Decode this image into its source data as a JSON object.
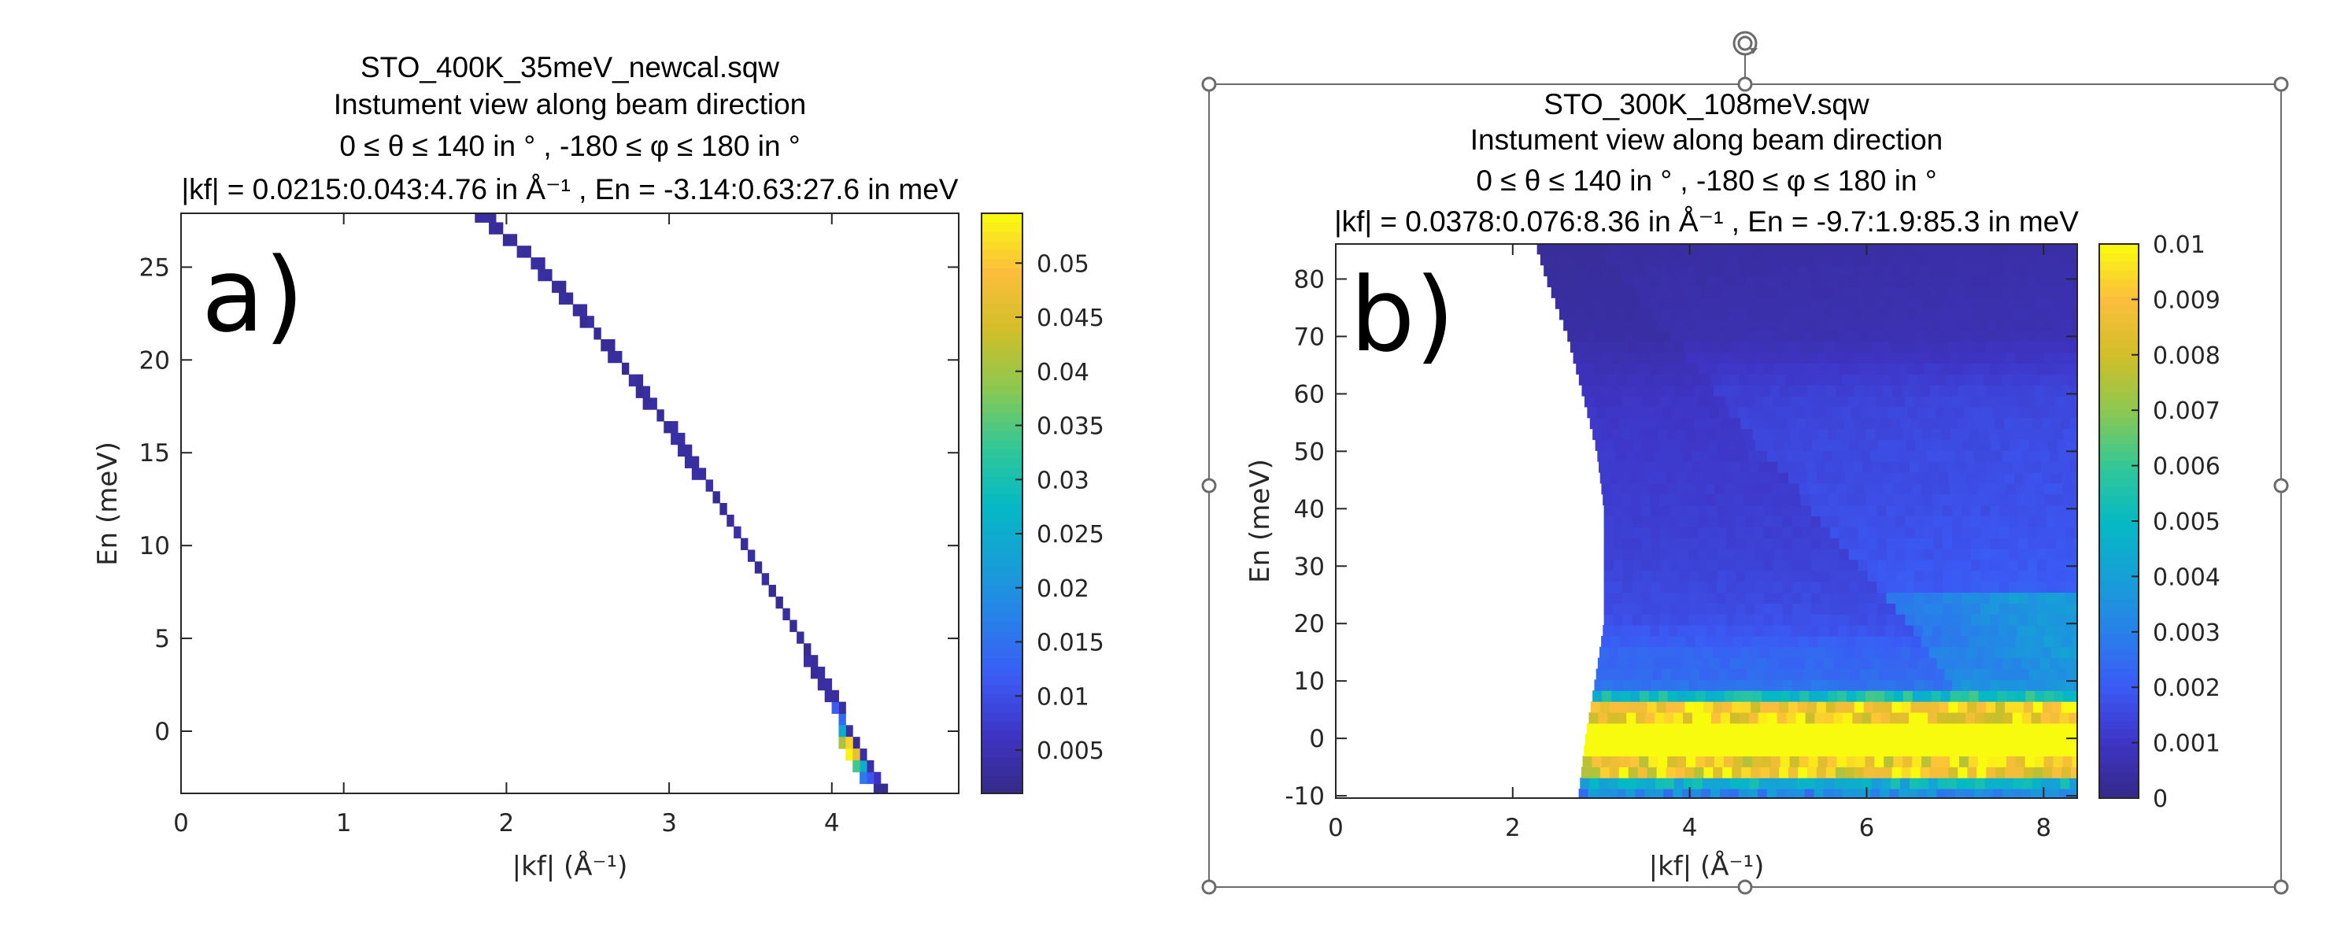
{
  "figure": {
    "selection": {
      "selected_panel": "b",
      "handles": [
        "top-left",
        "top-center",
        "top-right",
        "middle-left",
        "middle-right",
        "bottom-left",
        "bottom-center",
        "bottom-right"
      ],
      "rotate_handle_icon": "rotate-icon"
    }
  },
  "chart_data": [
    {
      "id": "a",
      "type": "heatmap",
      "panel_label": "a)",
      "title": [
        "STO_400K_35meV_newcal.sqw",
        "Instument view along beam direction",
        "0 ≤ θ ≤ 140 in ° , -180 ≤ φ ≤ 180 in °",
        "|kf| = 0.0215:0.043:4.76 in Å⁻¹ , En = -3.14:0.63:27.6 in meV"
      ],
      "xlabel": "|kf| (Å⁻¹)",
      "ylabel": "En (meV)",
      "xlim": [
        0,
        4.78
      ],
      "ylim": [
        -3.35,
        27.9
      ],
      "xticks": [
        0,
        1,
        2,
        3,
        4
      ],
      "xtick_labels": [
        "0",
        "1",
        "2",
        "3",
        "4"
      ],
      "yticks": [
        0,
        5,
        10,
        15,
        20,
        25
      ],
      "ytick_labels": [
        "0",
        "5",
        "10",
        "15",
        "20",
        "25"
      ],
      "grid": false,
      "colormap": "parula",
      "clim": [
        0.001,
        0.0546
      ],
      "colorbar": {
        "ticks": [
          0.005,
          0.01,
          0.015,
          0.02,
          0.025,
          0.03,
          0.035,
          0.04,
          0.045,
          0.05
        ],
        "tick_labels": [
          "0.005",
          "0.01",
          "0.015",
          "0.02",
          "0.025",
          "0.03",
          "0.035",
          "0.04",
          "0.045",
          "0.05"
        ]
      },
      "bins": {
        "kf_start": 0.0215,
        "kf_step": 0.043,
        "kf_end": 4.76,
        "en_start": -3.14,
        "en_step": 0.63,
        "en_end": 27.6
      },
      "description": "Single kinematic line En = Ei - 2.0723*|kf|^2 with Ei = 35 meV; intensity ~0.002-0.004 everywhere except elastic region",
      "ei_meV": 35,
      "baseline_intensity": 0.003,
      "highlight_cells": [
        {
          "kf": 4.02,
          "en": 1.27,
          "value": 0.012
        },
        {
          "kf": 4.06,
          "en": 0.64,
          "value": 0.014
        },
        {
          "kf": 4.06,
          "en": 0.01,
          "value": 0.024
        },
        {
          "kf": 4.06,
          "en": -0.62,
          "value": 0.041
        },
        {
          "kf": 4.11,
          "en": -0.62,
          "value": 0.051
        },
        {
          "kf": 4.11,
          "en": -1.25,
          "value": 0.054
        },
        {
          "kf": 4.15,
          "en": -1.25,
          "value": 0.047
        },
        {
          "kf": 4.15,
          "en": -1.88,
          "value": 0.034
        },
        {
          "kf": 4.19,
          "en": -1.88,
          "value": 0.025
        },
        {
          "kf": 4.19,
          "en": -2.51,
          "value": 0.016
        },
        {
          "kf": 4.24,
          "en": -2.51,
          "value": 0.011
        },
        {
          "kf": 4.28,
          "en": -2.51,
          "value": 0.006
        }
      ]
    },
    {
      "id": "b",
      "type": "heatmap",
      "panel_label": "b)",
      "title": [
        "STO_300K_108meV.sqw",
        "Instument view along beam direction",
        "0 ≤ θ ≤ 140 in ° , -180 ≤ φ ≤ 180 in °",
        "|kf| = 0.0378:0.076:8.36 in Å⁻¹ , En = -9.7:1.9:85.3 in meV"
      ],
      "xlabel": "|kf| (Å⁻¹)",
      "ylabel": "En (meV)",
      "xlim": [
        0,
        8.38
      ],
      "ylim": [
        -10.4,
        86.1
      ],
      "xticks": [
        0,
        2,
        4,
        6,
        8
      ],
      "xtick_labels": [
        "0",
        "2",
        "4",
        "6",
        "8"
      ],
      "yticks": [
        -10,
        0,
        10,
        20,
        30,
        40,
        50,
        60,
        70,
        80
      ],
      "ytick_labels": [
        "-10",
        "0",
        "10",
        "20",
        "30",
        "40",
        "50",
        "60",
        "70",
        "80"
      ],
      "grid": false,
      "colormap": "parula",
      "clim": [
        0,
        0.01
      ],
      "colorbar": {
        "ticks": [
          0,
          0.001,
          0.002,
          0.003,
          0.004,
          0.005,
          0.006,
          0.007,
          0.008,
          0.009,
          0.01
        ],
        "tick_labels": [
          "0",
          "0.001",
          "0.002",
          "0.003",
          "0.004",
          "0.005",
          "0.006",
          "0.007",
          "0.008",
          "0.009",
          "0.01"
        ]
      },
      "bins": {
        "kf_start": 0.0378,
        "kf_step": 0.076,
        "kf_end": 8.36,
        "en_start": -9.7,
        "en_step": 1.9,
        "en_end": 85.3
      },
      "ei_meV": 108,
      "coverage_left_edge": [
        {
          "en": 86,
          "kf": 2.26
        },
        {
          "en": 80,
          "kf": 2.38
        },
        {
          "en": 70,
          "kf": 2.62
        },
        {
          "en": 60,
          "kf": 2.79
        },
        {
          "en": 50,
          "kf": 2.95
        },
        {
          "en": 40,
          "kf": 3.03
        },
        {
          "en": 20,
          "kf": 3.03
        },
        {
          "en": 10,
          "kf": 2.93
        },
        {
          "en": 0,
          "kf": 2.82
        },
        {
          "en": -10.4,
          "kf": 2.74
        }
      ],
      "intensity_profile": [
        {
          "en": 85,
          "value": 0.0004
        },
        {
          "en": 70,
          "value": 0.0006
        },
        {
          "en": 60,
          "value": 0.0012
        },
        {
          "en": 50,
          "value": 0.0014
        },
        {
          "en": 40,
          "value": 0.0015
        },
        {
          "en": 30,
          "value": 0.0017
        },
        {
          "en": 20,
          "value": 0.0021
        },
        {
          "en": 15,
          "value": 0.0028
        },
        {
          "en": 10,
          "value": 0.003
        },
        {
          "en": 7,
          "value": 0.0042
        },
        {
          "en": 5,
          "value": 0.009
        },
        {
          "en": 0,
          "value": 0.01
        },
        {
          "en": -4,
          "value": 0.0092
        },
        {
          "en": -6,
          "value": 0.006
        },
        {
          "en": -8,
          "value": 0.0045
        },
        {
          "en": -10,
          "value": 0.003
        }
      ],
      "diagonal_feature": {
        "description": "lower-intensity diagonal band",
        "from": {
          "kf": 4.0,
          "en": 65
        },
        "to": {
          "kf": 7.0,
          "en": 8
        }
      }
    }
  ]
}
